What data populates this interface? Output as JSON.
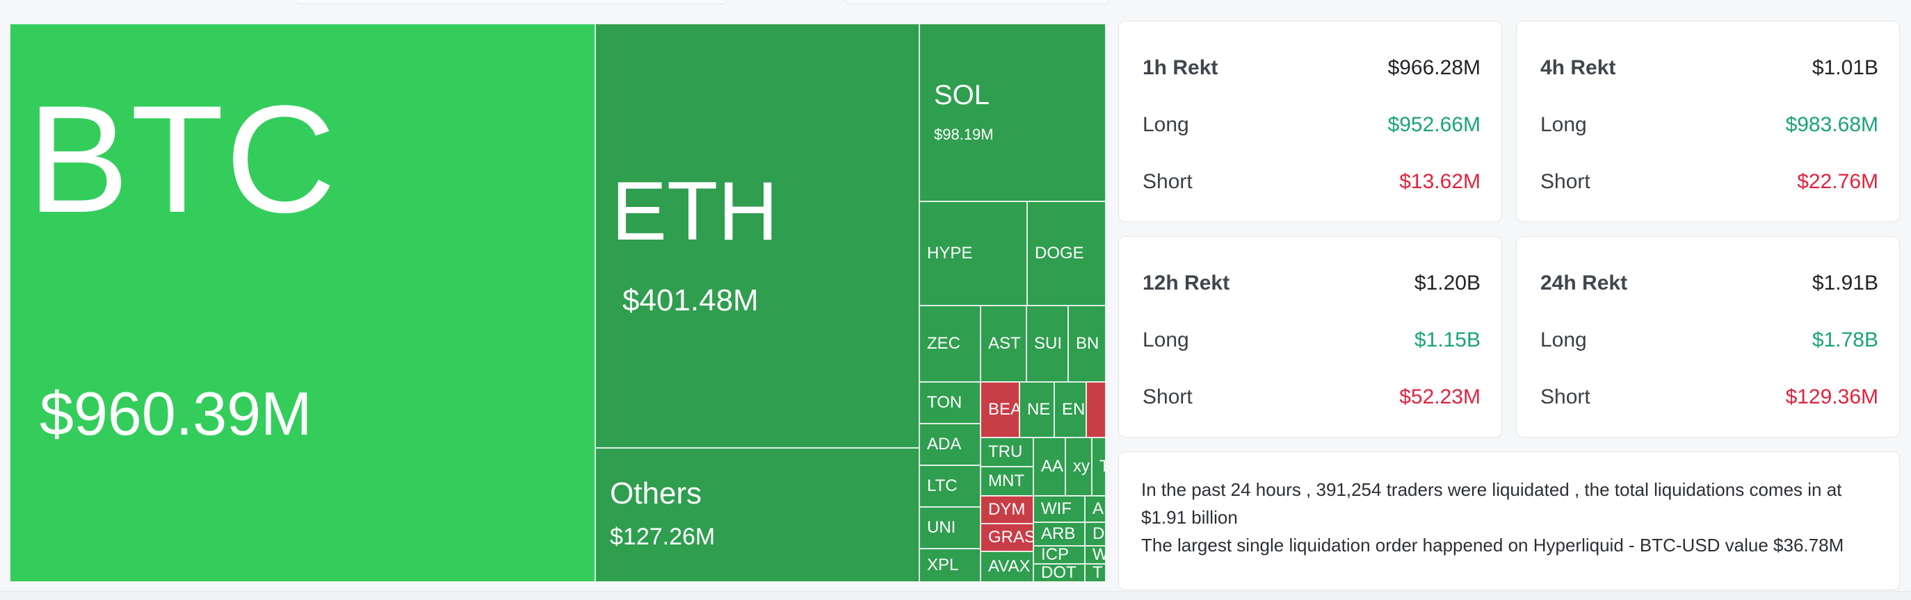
{
  "treemap": {
    "tiles": [
      {
        "id": "btc",
        "symbol": "BTC",
        "value": "$960.39M",
        "color": "bright"
      },
      {
        "id": "eth",
        "symbol": "ETH",
        "value": "$401.48M",
        "color": "dark"
      },
      {
        "id": "others",
        "symbol": "Others",
        "value": "$127.26M",
        "color": "dark"
      },
      {
        "id": "sol",
        "symbol": "SOL",
        "value": "$98.19M",
        "color": "dark"
      },
      {
        "id": "hype",
        "symbol": "HYPE",
        "color": "dark"
      },
      {
        "id": "doge",
        "symbol": "DOGE",
        "color": "dark"
      },
      {
        "id": "zec",
        "symbol": "ZEC",
        "color": "dark"
      },
      {
        "id": "ast",
        "symbol": "AST",
        "color": "dark"
      },
      {
        "id": "sui",
        "symbol": "SUI",
        "color": "dark"
      },
      {
        "id": "bn",
        "symbol": "BN",
        "color": "dark"
      },
      {
        "id": "ton",
        "symbol": "TON",
        "color": "dark"
      },
      {
        "id": "bea",
        "symbol": "BEA",
        "color": "red"
      },
      {
        "id": "ne",
        "symbol": "NE",
        "color": "dark"
      },
      {
        "id": "en",
        "symbol": "EN",
        "color": "dark"
      },
      {
        "id": "red-small",
        "symbol": "",
        "color": "red"
      },
      {
        "id": "ada",
        "symbol": "ADA",
        "color": "dark"
      },
      {
        "id": "tru",
        "symbol": "TRU",
        "color": "dark"
      },
      {
        "id": "aa",
        "symbol": "AA",
        "color": "dark"
      },
      {
        "id": "xy",
        "symbol": "xy",
        "color": "dark"
      },
      {
        "id": "t1",
        "symbol": "T",
        "color": "dark"
      },
      {
        "id": "ltc",
        "symbol": "LTC",
        "color": "dark"
      },
      {
        "id": "mnt",
        "symbol": "MNT",
        "color": "dark"
      },
      {
        "id": "wif",
        "symbol": "WIF",
        "color": "dark"
      },
      {
        "id": "a2",
        "symbol": "A",
        "color": "dark"
      },
      {
        "id": "uni",
        "symbol": "UNI",
        "color": "dark"
      },
      {
        "id": "dym",
        "symbol": "DYM",
        "color": "red"
      },
      {
        "id": "arb",
        "symbol": "ARB",
        "color": "dark"
      },
      {
        "id": "d1",
        "symbol": "D",
        "color": "dark"
      },
      {
        "id": "gras",
        "symbol": "GRAS",
        "color": "red"
      },
      {
        "id": "icp",
        "symbol": "ICP",
        "color": "dark"
      },
      {
        "id": "w1",
        "symbol": "W",
        "color": "dark"
      },
      {
        "id": "xpl",
        "symbol": "XPL",
        "color": "dark"
      },
      {
        "id": "avax",
        "symbol": "AVAX",
        "color": "dark"
      },
      {
        "id": "dot",
        "symbol": "DOT",
        "color": "dark"
      },
      {
        "id": "t2",
        "symbol": "T",
        "color": "dark"
      }
    ]
  },
  "cards": [
    {
      "id": "1h",
      "title": "1h Rekt",
      "total": "$966.28M",
      "long_label": "Long",
      "long": "$952.66M",
      "short_label": "Short",
      "short": "$13.62M"
    },
    {
      "id": "4h",
      "title": "4h Rekt",
      "total": "$1.01B",
      "long_label": "Long",
      "long": "$983.68M",
      "short_label": "Short",
      "short": "$22.76M"
    },
    {
      "id": "12h",
      "title": "12h Rekt",
      "total": "$1.20B",
      "long_label": "Long",
      "long": "$1.15B",
      "short_label": "Short",
      "short": "$52.23M"
    },
    {
      "id": "24h",
      "title": "24h Rekt",
      "total": "$1.91B",
      "long_label": "Long",
      "long": "$1.78B",
      "short_label": "Short",
      "short": "$129.36M"
    }
  ],
  "summary": {
    "line1": "In the past 24 hours , 391,254 traders were liquidated , the total liquidations comes in at $1.91 billion",
    "line2": "The largest single liquidation order happened on Hyperliquid - BTC-USD value $36.78M"
  },
  "colors": {
    "bright": "#34cd5c",
    "dark": "#2f9e4f",
    "red": "#c93d46",
    "positive": "#1aa37a",
    "negative": "#e2233d"
  }
}
